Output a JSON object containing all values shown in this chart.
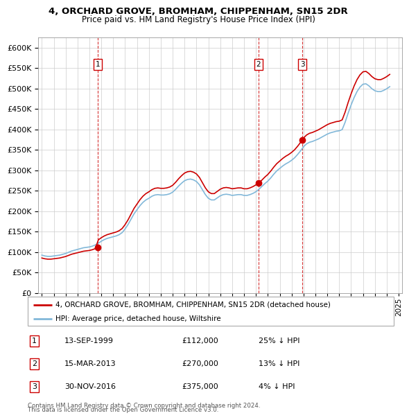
{
  "title": "4, ORCHARD GROVE, BROMHAM, CHIPPENHAM, SN15 2DR",
  "subtitle": "Price paid vs. HM Land Registry's House Price Index (HPI)",
  "ylim": [
    0,
    625000
  ],
  "yticks": [
    0,
    50000,
    100000,
    150000,
    200000,
    250000,
    300000,
    350000,
    400000,
    450000,
    500000,
    550000,
    600000
  ],
  "background_color": "#ffffff",
  "grid_color": "#cccccc",
  "sale_color": "#cc0000",
  "hpi_color": "#82b8d9",
  "sale_label": "4, ORCHARD GROVE, BROMHAM, CHIPPENHAM, SN15 2DR (detached house)",
  "hpi_label": "HPI: Average price, detached house, Wiltshire",
  "transactions": [
    {
      "num": 1,
      "date": "13-SEP-1999",
      "price": 112000,
      "pct": "25%",
      "year": 1999.7
    },
    {
      "num": 2,
      "date": "15-MAR-2013",
      "price": 270000,
      "pct": "13%",
      "year": 2013.2
    },
    {
      "num": 3,
      "date": "30-NOV-2016",
      "price": 375000,
      "pct": "4%",
      "year": 2016.9
    }
  ],
  "vline_color": "#cc0000",
  "footer1": "Contains HM Land Registry data © Crown copyright and database right 2024.",
  "footer2": "This data is licensed under the Open Government Licence v3.0.",
  "hpi_data": {
    "years": [
      1995.0,
      1995.25,
      1995.5,
      1995.75,
      1996.0,
      1996.25,
      1996.5,
      1996.75,
      1997.0,
      1997.25,
      1997.5,
      1997.75,
      1998.0,
      1998.25,
      1998.5,
      1998.75,
      1999.0,
      1999.25,
      1999.5,
      1999.75,
      2000.0,
      2000.25,
      2000.5,
      2000.75,
      2001.0,
      2001.25,
      2001.5,
      2001.75,
      2002.0,
      2002.25,
      2002.5,
      2002.75,
      2003.0,
      2003.25,
      2003.5,
      2003.75,
      2004.0,
      2004.25,
      2004.5,
      2004.75,
      2005.0,
      2005.25,
      2005.5,
      2005.75,
      2006.0,
      2006.25,
      2006.5,
      2006.75,
      2007.0,
      2007.25,
      2007.5,
      2007.75,
      2008.0,
      2008.25,
      2008.5,
      2008.75,
      2009.0,
      2009.25,
      2009.5,
      2009.75,
      2010.0,
      2010.25,
      2010.5,
      2010.75,
      2011.0,
      2011.25,
      2011.5,
      2011.75,
      2012.0,
      2012.25,
      2012.5,
      2012.75,
      2013.0,
      2013.25,
      2013.5,
      2013.75,
      2014.0,
      2014.25,
      2014.5,
      2014.75,
      2015.0,
      2015.25,
      2015.5,
      2015.75,
      2016.0,
      2016.25,
      2016.5,
      2016.75,
      2017.0,
      2017.25,
      2017.5,
      2017.75,
      2018.0,
      2018.25,
      2018.5,
      2018.75,
      2019.0,
      2019.25,
      2019.5,
      2019.75,
      2020.0,
      2020.25,
      2020.5,
      2020.75,
      2021.0,
      2021.25,
      2021.5,
      2021.75,
      2022.0,
      2022.25,
      2022.5,
      2022.75,
      2023.0,
      2023.25,
      2023.5,
      2023.75,
      2024.0,
      2024.25
    ],
    "values": [
      93000,
      91000,
      90000,
      90000,
      91000,
      92000,
      93000,
      95000,
      97000,
      100000,
      103000,
      105000,
      107000,
      109000,
      111000,
      112000,
      113000,
      115000,
      118000,
      122000,
      127000,
      131000,
      134000,
      136000,
      138000,
      140000,
      143000,
      148000,
      157000,
      168000,
      181000,
      194000,
      204000,
      214000,
      222000,
      228000,
      232000,
      237000,
      240000,
      241000,
      240000,
      240000,
      241000,
      243000,
      247000,
      254000,
      262000,
      269000,
      275000,
      278000,
      279000,
      277000,
      273000,
      265000,
      253000,
      241000,
      232000,
      228000,
      228000,
      233000,
      238000,
      241000,
      242000,
      241000,
      239000,
      240000,
      241000,
      241000,
      239000,
      239000,
      241000,
      244000,
      248000,
      254000,
      261000,
      268000,
      274000,
      282000,
      291000,
      299000,
      305000,
      311000,
      316000,
      320000,
      325000,
      331000,
      339000,
      348000,
      358000,
      365000,
      369000,
      371000,
      374000,
      377000,
      381000,
      385000,
      389000,
      392000,
      394000,
      396000,
      397000,
      400000,
      418000,
      440000,
      460000,
      478000,
      493000,
      504000,
      511000,
      512000,
      507000,
      500000,
      495000,
      493000,
      493000,
      496000,
      500000,
      505000
    ]
  }
}
